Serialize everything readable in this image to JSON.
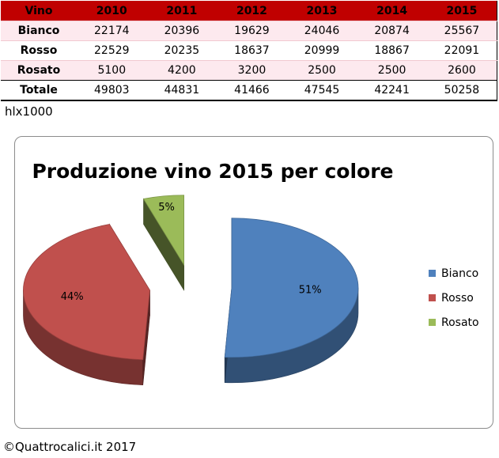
{
  "table": {
    "header": [
      "Vino",
      "2010",
      "2011",
      "2012",
      "2013",
      "2014",
      "2015"
    ],
    "rows": [
      {
        "label": "Bianco",
        "values": [
          "22174",
          "20396",
          "19629",
          "24046",
          "20874",
          "25567"
        ]
      },
      {
        "label": "Rosso",
        "values": [
          "22529",
          "20235",
          "18637",
          "20999",
          "18867",
          "22091"
        ]
      },
      {
        "label": "Rosato",
        "values": [
          "5100",
          "4200",
          "3200",
          "2500",
          "2500",
          "2600"
        ]
      },
      {
        "label": "Totale",
        "values": [
          "49803",
          "44831",
          "41466",
          "47545",
          "42241",
          "50258"
        ]
      }
    ]
  },
  "unit_note": "hlx1000",
  "copyright": "©Quattrocalici.it 2017",
  "chart_data": {
    "type": "pie",
    "title": "Produzione vino 2015 per colore",
    "categories": [
      "Bianco",
      "Rosso",
      "Rosato"
    ],
    "values": [
      25567,
      22091,
      2600
    ],
    "percent_labels": [
      "51%",
      "44%",
      "5%"
    ],
    "colors": [
      "#4f81bd",
      "#c0504d",
      "#9bbb59"
    ],
    "exploded": true,
    "three_d": true,
    "legend_position": "right"
  }
}
